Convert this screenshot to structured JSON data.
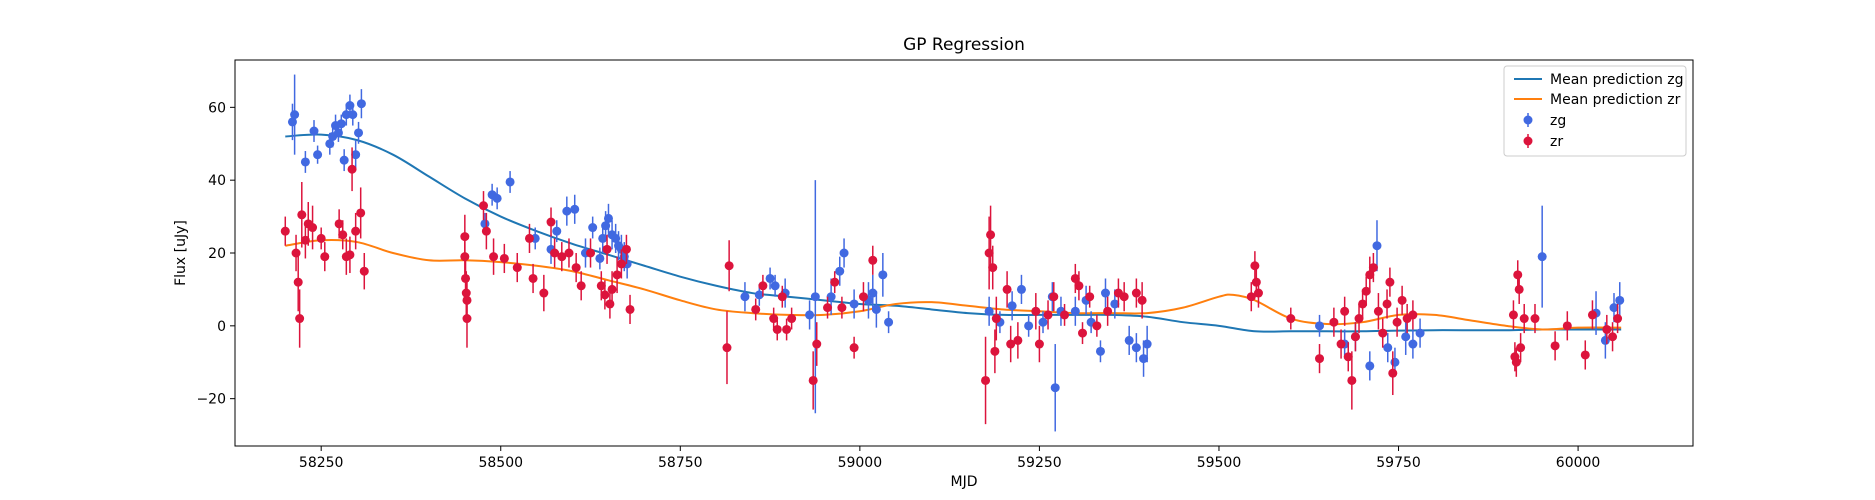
{
  "chart_data": {
    "type": "scatter",
    "title": "GP Regression",
    "xlabel": "MJD",
    "ylabel": "Flux [uJy]",
    "xlim": [
      58130,
      60160
    ],
    "ylim": [
      -33,
      73
    ],
    "x_ticks": [
      58250,
      58500,
      58750,
      59000,
      59250,
      59500,
      59750,
      60000
    ],
    "y_ticks": [
      -20,
      0,
      20,
      40,
      60
    ],
    "legend_position": "top-right",
    "grid": false,
    "legend": {
      "lines": [
        {
          "label": "Mean prediction zg",
          "color": "#1f77b4"
        },
        {
          "label": "Mean prediction zr",
          "color": "#ff7f0e"
        }
      ],
      "points": [
        {
          "label": "zg",
          "color": "#4169e1"
        },
        {
          "label": "zr",
          "color": "#dc143c"
        }
      ]
    },
    "curves": [
      {
        "name": "Mean prediction zg",
        "color": "#1f77b4",
        "x": [
          58200,
          58250,
          58300,
          58350,
          58400,
          58450,
          58500,
          58550,
          58600,
          58650,
          58700,
          58750,
          58800,
          58850,
          58900,
          58950,
          59000,
          59050,
          59100,
          59150,
          59200,
          59250,
          59300,
          59350,
          59400,
          59450,
          59500,
          59550,
          59600,
          59650,
          59700,
          59750,
          59800,
          59850,
          59900,
          59950,
          60000,
          60060
        ],
        "y": [
          52,
          52.5,
          51,
          47,
          41,
          35,
          30,
          26,
          22.5,
          19.5,
          16.5,
          13.5,
          11,
          9,
          8,
          7,
          6,
          5.5,
          4.5,
          3.5,
          3,
          3,
          3,
          3,
          2.5,
          1,
          0,
          -1.5,
          -1.5,
          -1.5,
          -1.5,
          -1.3,
          -1.2,
          -1.2,
          -1.2,
          -1,
          -1,
          -1
        ]
      },
      {
        "name": "Mean prediction zr",
        "color": "#ff7f0e",
        "x": [
          58200,
          58250,
          58300,
          58350,
          58400,
          58450,
          58500,
          58550,
          58600,
          58650,
          58700,
          58750,
          58800,
          58850,
          58900,
          58950,
          59000,
          59050,
          59100,
          59150,
          59200,
          59250,
          59300,
          59350,
          59400,
          59450,
          59500,
          59520,
          59550,
          59600,
          59650,
          59700,
          59750,
          59800,
          59850,
          59900,
          59950,
          60000,
          60060
        ],
        "y": [
          22,
          23.5,
          23,
          20,
          18,
          18,
          17.5,
          16.5,
          15,
          12.5,
          10,
          7,
          4.5,
          3.5,
          3,
          3,
          4,
          6,
          6.5,
          5.5,
          4.5,
          4,
          3.5,
          3.5,
          3.5,
          5,
          8,
          8.5,
          7,
          2,
          0.5,
          1,
          3,
          3,
          1.5,
          0,
          -1,
          -0.5,
          -0.5
        ]
      }
    ],
    "series": [
      {
        "name": "zg",
        "color": "#4169e1",
        "points": [
          [
            58210,
            56,
            5
          ],
          [
            58213,
            58,
            11
          ],
          [
            58228,
            45,
            3
          ],
          [
            58240,
            53.5,
            3
          ],
          [
            58245,
            47,
            2.5
          ],
          [
            58262,
            50,
            3
          ],
          [
            58266,
            52,
            3
          ],
          [
            58270,
            55,
            3
          ],
          [
            58274,
            53,
            2.5
          ],
          [
            58278,
            55.5,
            2.5
          ],
          [
            58282,
            45.5,
            3
          ],
          [
            58285,
            58,
            3
          ],
          [
            58290,
            60.5,
            3
          ],
          [
            58294,
            58,
            3
          ],
          [
            58298,
            47,
            4
          ],
          [
            58302,
            53,
            3
          ],
          [
            58306,
            61,
            4
          ],
          [
            58478,
            28,
            3
          ],
          [
            58488,
            36,
            3
          ],
          [
            58495,
            35,
            3
          ],
          [
            58513,
            39.5,
            3
          ],
          [
            58548,
            24,
            3
          ],
          [
            58570,
            21,
            4
          ],
          [
            58578,
            26,
            3
          ],
          [
            58592,
            31.5,
            4
          ],
          [
            58603,
            32,
            4
          ],
          [
            58618,
            20,
            4
          ],
          [
            58628,
            27,
            3
          ],
          [
            58638,
            18.5,
            3
          ],
          [
            58642,
            24,
            4
          ],
          [
            58646,
            27.5,
            4
          ],
          [
            58650,
            29.5,
            4
          ],
          [
            58655,
            25,
            4
          ],
          [
            58660,
            24,
            4
          ],
          [
            58664,
            22,
            4
          ],
          [
            58668,
            21,
            4
          ],
          [
            58672,
            19,
            4
          ],
          [
            58676,
            17,
            4
          ],
          [
            58840,
            8,
            4
          ],
          [
            58860,
            8.5,
            3
          ],
          [
            58875,
            13,
            3
          ],
          [
            58882,
            11,
            3
          ],
          [
            58896,
            9,
            4
          ],
          [
            58930,
            3,
            4
          ],
          [
            58938,
            8,
            32
          ],
          [
            58960,
            8,
            5
          ],
          [
            58972,
            15,
            4
          ],
          [
            58978,
            20,
            4
          ],
          [
            58992,
            6,
            4
          ],
          [
            59012,
            7,
            5
          ],
          [
            59018,
            9,
            5
          ],
          [
            59023,
            4.5,
            5
          ],
          [
            59032,
            14,
            6
          ],
          [
            59040,
            1,
            3
          ],
          [
            59180,
            4,
            4
          ],
          [
            59195,
            1,
            3
          ],
          [
            59212,
            5.5,
            4
          ],
          [
            59225,
            10,
            4
          ],
          [
            59235,
            0,
            3
          ],
          [
            59255,
            1,
            3
          ],
          [
            59268,
            8,
            4
          ],
          [
            59272,
            -17,
            12
          ],
          [
            59280,
            4,
            4
          ],
          [
            59300,
            4,
            4
          ],
          [
            59315,
            7,
            4
          ],
          [
            59322,
            1,
            3
          ],
          [
            59335,
            -7,
            3
          ],
          [
            59342,
            9,
            4
          ],
          [
            59355,
            6,
            4
          ],
          [
            59375,
            -4,
            4
          ],
          [
            59385,
            -6,
            4
          ],
          [
            59395,
            -9,
            5
          ],
          [
            59400,
            -5,
            5
          ],
          [
            59640,
            0,
            3
          ],
          [
            59675,
            -5,
            4
          ],
          [
            59690,
            -3,
            4
          ],
          [
            59710,
            -11,
            4
          ],
          [
            59720,
            22,
            7
          ],
          [
            59735,
            -6,
            4
          ],
          [
            59745,
            -10,
            4
          ],
          [
            59760,
            -3,
            5
          ],
          [
            59770,
            -5,
            4
          ],
          [
            59780,
            -2,
            4
          ],
          [
            59950,
            19,
            14
          ],
          [
            60025,
            3.5,
            6
          ],
          [
            60038,
            -4,
            5
          ],
          [
            60050,
            5,
            4
          ],
          [
            60058,
            7,
            5
          ]
        ]
      },
      {
        "name": "zr",
        "color": "#dc143c",
        "points": [
          [
            58200,
            26,
            4
          ],
          [
            58215,
            20,
            5
          ],
          [
            58218,
            12,
            8
          ],
          [
            58220,
            2,
            8
          ],
          [
            58223,
            30.5,
            9
          ],
          [
            58228,
            23.5,
            5
          ],
          [
            58232,
            28,
            6
          ],
          [
            58238,
            27,
            6
          ],
          [
            58250,
            24,
            3
          ],
          [
            58255,
            19,
            4
          ],
          [
            58275,
            28,
            4
          ],
          [
            58280,
            25,
            4
          ],
          [
            58285,
            19,
            5
          ],
          [
            58290,
            19.5,
            5
          ],
          [
            58293,
            43,
            6
          ],
          [
            58298,
            26,
            5
          ],
          [
            58305,
            31,
            7
          ],
          [
            58310,
            15,
            5
          ],
          [
            58450,
            24.5,
            6
          ],
          [
            58450,
            19,
            6
          ],
          [
            58451,
            13,
            6
          ],
          [
            58452,
            9,
            6
          ],
          [
            58453,
            7,
            6
          ],
          [
            58453,
            2,
            8
          ],
          [
            58476,
            33,
            4
          ],
          [
            58480,
            26,
            5
          ],
          [
            58490,
            19,
            5
          ],
          [
            58505,
            18.5,
            4
          ],
          [
            58523,
            16,
            4
          ],
          [
            58540,
            24,
            4
          ],
          [
            58545,
            13,
            4
          ],
          [
            58560,
            9,
            5
          ],
          [
            58570,
            28.5,
            4
          ],
          [
            58575,
            20,
            4
          ],
          [
            58585,
            19,
            4
          ],
          [
            58595,
            20,
            4
          ],
          [
            58605,
            16,
            4
          ],
          [
            58612,
            11,
            4
          ],
          [
            58625,
            20,
            4
          ],
          [
            58640,
            11,
            4
          ],
          [
            58645,
            8.5,
            4
          ],
          [
            58648,
            21,
            4
          ],
          [
            58652,
            6,
            4
          ],
          [
            58655,
            10,
            5
          ],
          [
            58662,
            14,
            5
          ],
          [
            58668,
            17,
            4
          ],
          [
            58675,
            21,
            4
          ],
          [
            58680,
            4.5,
            4
          ],
          [
            58815,
            -6,
            10
          ],
          [
            58818,
            16.5,
            7
          ],
          [
            58855,
            4.5,
            3
          ],
          [
            58865,
            11,
            3
          ],
          [
            58880,
            2,
            3
          ],
          [
            58885,
            -1,
            3
          ],
          [
            58892,
            8,
            3
          ],
          [
            58898,
            -1,
            3
          ],
          [
            58905,
            2,
            3
          ],
          [
            58935,
            -15,
            8
          ],
          [
            58940,
            -5,
            6
          ],
          [
            58955,
            5,
            3
          ],
          [
            58965,
            12,
            3
          ],
          [
            58975,
            5,
            3
          ],
          [
            58992,
            -6,
            3
          ],
          [
            59005,
            8,
            4
          ],
          [
            59018,
            18,
            4
          ],
          [
            59175,
            -15,
            12
          ],
          [
            59180,
            20,
            10
          ],
          [
            59182,
            25,
            8
          ],
          [
            59185,
            16,
            6
          ],
          [
            59188,
            -7,
            6
          ],
          [
            59190,
            2,
            6
          ],
          [
            59205,
            10,
            5
          ],
          [
            59210,
            -5,
            5
          ],
          [
            59220,
            -4,
            5
          ],
          [
            59245,
            4,
            5
          ],
          [
            59250,
            -5,
            5
          ],
          [
            59262,
            3,
            4
          ],
          [
            59270,
            8,
            4
          ],
          [
            59285,
            3,
            3
          ],
          [
            59300,
            13,
            4
          ],
          [
            59305,
            11,
            4
          ],
          [
            59310,
            -2,
            3
          ],
          [
            59320,
            8,
            3
          ],
          [
            59330,
            0,
            3
          ],
          [
            59345,
            4,
            4
          ],
          [
            59360,
            9,
            4
          ],
          [
            59368,
            8,
            4
          ],
          [
            59385,
            9,
            4
          ],
          [
            59393,
            7,
            5
          ],
          [
            59545,
            8,
            4
          ],
          [
            59550,
            16.5,
            4
          ],
          [
            59552,
            12,
            4
          ],
          [
            59555,
            9,
            4
          ],
          [
            59600,
            2,
            3
          ],
          [
            59640,
            -9,
            4
          ],
          [
            59660,
            1,
            4
          ],
          [
            59670,
            -5,
            4
          ],
          [
            59675,
            4,
            4
          ],
          [
            59680,
            -8.5,
            4
          ],
          [
            59685,
            -15,
            8
          ],
          [
            59690,
            -3,
            4
          ],
          [
            59695,
            2,
            4
          ],
          [
            59700,
            6,
            4
          ],
          [
            59705,
            9.5,
            4
          ],
          [
            59710,
            14,
            5
          ],
          [
            59715,
            16,
            4
          ],
          [
            59722,
            4,
            5
          ],
          [
            59728,
            -2,
            4
          ],
          [
            59734,
            6,
            4
          ],
          [
            59738,
            12,
            4
          ],
          [
            59742,
            -13,
            6
          ],
          [
            59748,
            1,
            4
          ],
          [
            59755,
            7,
            4
          ],
          [
            59762,
            2,
            4
          ],
          [
            59770,
            3,
            4
          ],
          [
            59910,
            3,
            4
          ],
          [
            59912,
            -8.5,
            4
          ],
          [
            59914,
            -10,
            4
          ],
          [
            59916,
            14,
            4
          ],
          [
            59918,
            10,
            4
          ],
          [
            59920,
            -6,
            4
          ],
          [
            59925,
            2,
            4
          ],
          [
            59940,
            2,
            4
          ],
          [
            59968,
            -5.5,
            4
          ],
          [
            59985,
            0,
            4
          ],
          [
            60010,
            -8,
            4
          ],
          [
            60020,
            3,
            4
          ],
          [
            60040,
            -1,
            4
          ],
          [
            60048,
            -3,
            4
          ],
          [
            60055,
            2,
            4
          ]
        ]
      }
    ]
  }
}
